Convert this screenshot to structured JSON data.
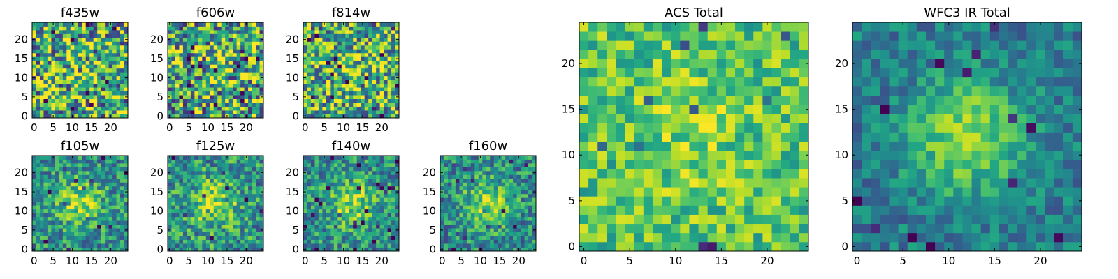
{
  "figure": {
    "description_free": true
  },
  "chart_data": [
    {
      "type": "heatmap",
      "title": "f435w",
      "grid_size": 25,
      "xlim": [
        0,
        24
      ],
      "ylim": [
        0,
        24
      ],
      "xticks": [
        0,
        5,
        10,
        15,
        20
      ],
      "yticks": [
        0,
        5,
        10,
        15,
        20
      ],
      "source_strength": 0.05,
      "noise": 1.0,
      "base": 0.62,
      "seed": 11
    },
    {
      "type": "heatmap",
      "title": "f606w",
      "grid_size": 25,
      "xlim": [
        0,
        24
      ],
      "ylim": [
        0,
        24
      ],
      "xticks": [
        0,
        5,
        10,
        15,
        20
      ],
      "yticks": [
        0,
        5,
        10,
        15,
        20
      ],
      "source_strength": 0.05,
      "noise": 1.0,
      "base": 0.6,
      "seed": 23
    },
    {
      "type": "heatmap",
      "title": "f814w",
      "grid_size": 25,
      "xlim": [
        0,
        24
      ],
      "ylim": [
        0,
        24
      ],
      "xticks": [
        0,
        5,
        10,
        15,
        20
      ],
      "yticks": [
        0,
        5,
        10,
        15,
        20
      ],
      "source_strength": 0.15,
      "noise": 0.9,
      "base": 0.62,
      "seed": 37
    },
    {
      "type": "heatmap",
      "title": "f105w",
      "grid_size": 25,
      "xlim": [
        0,
        24
      ],
      "ylim": [
        0,
        24
      ],
      "xticks": [
        0,
        5,
        10,
        15,
        20
      ],
      "yticks": [
        0,
        5,
        10,
        15,
        20
      ],
      "source_strength": 0.35,
      "noise": 0.55,
      "base": 0.5,
      "seed": 41
    },
    {
      "type": "heatmap",
      "title": "f125w",
      "grid_size": 25,
      "xlim": [
        0,
        24
      ],
      "ylim": [
        0,
        24
      ],
      "xticks": [
        0,
        5,
        10,
        15,
        20
      ],
      "yticks": [
        0,
        5,
        10,
        15,
        20
      ],
      "source_strength": 0.35,
      "noise": 0.6,
      "base": 0.52,
      "seed": 53
    },
    {
      "type": "heatmap",
      "title": "f140w",
      "grid_size": 25,
      "xlim": [
        0,
        24
      ],
      "ylim": [
        0,
        24
      ],
      "xticks": [
        0,
        5,
        10,
        15,
        20
      ],
      "yticks": [
        0,
        5,
        10,
        15,
        20
      ],
      "source_strength": 0.35,
      "noise": 0.55,
      "base": 0.5,
      "seed": 67
    },
    {
      "type": "heatmap",
      "title": "f160w",
      "grid_size": 25,
      "xlim": [
        0,
        24
      ],
      "ylim": [
        0,
        24
      ],
      "xticks": [
        0,
        5,
        10,
        15,
        20
      ],
      "yticks": [
        0,
        5,
        10,
        15,
        20
      ],
      "source_strength": 0.38,
      "noise": 0.55,
      "base": 0.48,
      "seed": 79
    },
    {
      "type": "heatmap",
      "title": "ACS Total",
      "grid_size": 25,
      "xlim": [
        0,
        24
      ],
      "ylim": [
        0,
        24
      ],
      "xticks": [
        0,
        5,
        10,
        15,
        20
      ],
      "yticks": [
        0,
        5,
        10,
        15,
        20
      ],
      "source_strength": 0.1,
      "noise": 0.45,
      "base": 0.72,
      "seed": 97
    },
    {
      "type": "heatmap",
      "title": "WFC3 IR Total",
      "grid_size": 25,
      "xlim": [
        0,
        24
      ],
      "ylim": [
        0,
        24
      ],
      "xticks": [
        0,
        5,
        10,
        15,
        20
      ],
      "yticks": [
        0,
        5,
        10,
        15,
        20
      ],
      "source_strength": 0.45,
      "noise": 0.35,
      "base": 0.42,
      "seed": 113
    }
  ]
}
